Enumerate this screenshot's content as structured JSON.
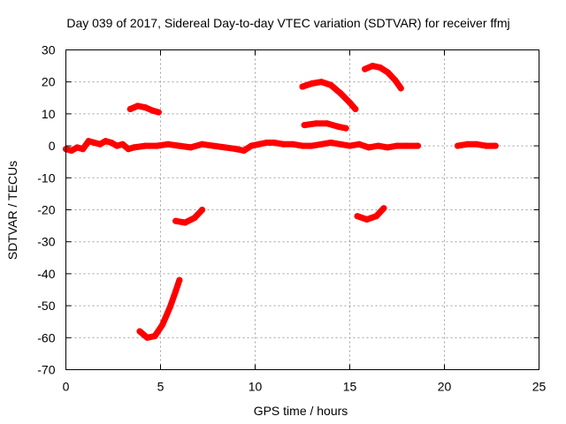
{
  "chart_data": {
    "type": "scatter",
    "title": "Day 039 of 2017, Sidereal Day-to-day VTEC variation (SDTVAR) for receiver ffmj",
    "xlabel": "GPS time / hours",
    "ylabel": "SDTVAR / TECUs",
    "xlim": [
      0,
      25
    ],
    "ylim": [
      -70,
      30
    ],
    "xticks": [
      0,
      5,
      10,
      15,
      20,
      25
    ],
    "yticks": [
      -70,
      -60,
      -50,
      -40,
      -30,
      -20,
      -10,
      0,
      10,
      20,
      30
    ],
    "grid": true,
    "color": "#ff0000",
    "series": [
      {
        "x": [
          0.0,
          0.3,
          0.6,
          0.9,
          1.2,
          1.5,
          1.8,
          2.1,
          2.4,
          2.7,
          3.0,
          3.3,
          3.6
        ],
        "y": [
          -1.0,
          -1.5,
          -0.5,
          -1.0,
          1.5,
          1.0,
          0.5,
          1.5,
          1.0,
          0.0,
          0.5,
          -1.0,
          -0.5
        ]
      },
      {
        "x": [
          3.6,
          4.2,
          4.8,
          5.4,
          6.0,
          6.6,
          7.2,
          7.8,
          8.4,
          9.0,
          9.4
        ],
        "y": [
          -0.5,
          0.0,
          0.0,
          0.5,
          0.0,
          -0.5,
          0.5,
          0.0,
          -0.5,
          -1.0,
          -1.5
        ]
      },
      {
        "x": [
          9.4,
          9.8,
          10.2,
          10.6,
          11.0,
          11.5,
          12.0,
          12.5,
          13.0,
          13.5,
          14.0,
          14.5,
          15.0,
          15.5,
          16.0,
          16.5,
          17.0,
          17.5,
          18.0,
          18.6
        ],
        "y": [
          -1.5,
          0.0,
          0.5,
          1.0,
          1.0,
          0.5,
          0.5,
          0.0,
          0.0,
          0.5,
          1.0,
          0.5,
          0.0,
          0.5,
          -0.5,
          0.0,
          -0.5,
          0.0,
          0.0,
          0.0
        ]
      },
      {
        "x": [
          20.7,
          21.2,
          21.7,
          22.2,
          22.7
        ],
        "y": [
          0.0,
          0.5,
          0.5,
          0.0,
          0.0
        ]
      },
      {
        "x": [
          3.4,
          3.8,
          4.2,
          4.6,
          4.9
        ],
        "y": [
          11.5,
          12.5,
          12.0,
          11.0,
          10.5
        ]
      },
      {
        "x": [
          12.5,
          13.0,
          13.5,
          14.0,
          14.5,
          15.0,
          15.3
        ],
        "y": [
          18.5,
          19.5,
          20.0,
          19.0,
          16.5,
          13.5,
          11.5
        ]
      },
      {
        "x": [
          12.6,
          13.2,
          13.8,
          14.4,
          14.8
        ],
        "y": [
          6.5,
          7.0,
          7.0,
          6.0,
          5.5
        ]
      },
      {
        "x": [
          15.8,
          16.2,
          16.6,
          17.0,
          17.4,
          17.7
        ],
        "y": [
          24.0,
          25.0,
          24.5,
          23.0,
          20.5,
          18.0
        ]
      },
      {
        "x": [
          5.8,
          6.3,
          6.8,
          7.2
        ],
        "y": [
          -23.5,
          -24.0,
          -22.5,
          -20.0
        ]
      },
      {
        "x": [
          15.4,
          15.9,
          16.4,
          16.8
        ],
        "y": [
          -22.0,
          -23.0,
          -22.0,
          -19.5
        ]
      },
      {
        "x": [
          3.9,
          4.3,
          4.7,
          5.1,
          5.5,
          5.8,
          6.0
        ],
        "y": [
          -58.0,
          -60.0,
          -59.5,
          -56.0,
          -50.5,
          -45.5,
          -42.0
        ]
      }
    ]
  }
}
